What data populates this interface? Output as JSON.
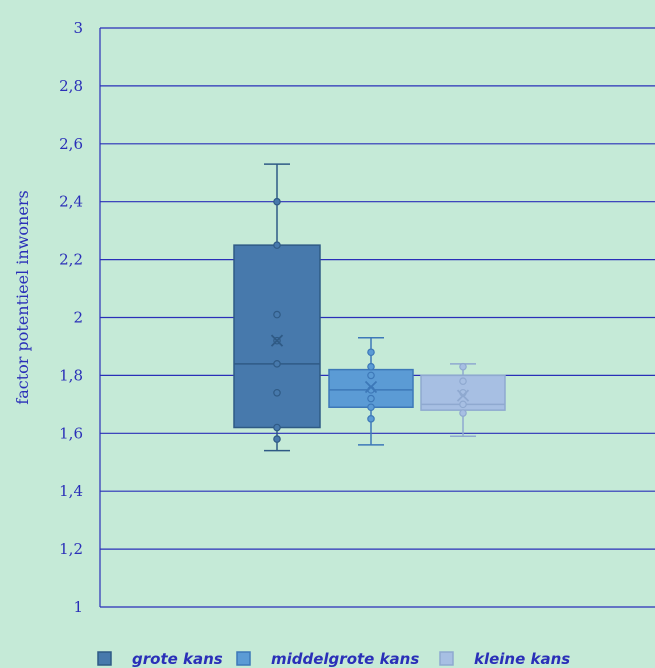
{
  "chart_data": {
    "type": "box",
    "ylabel": "factor potentieel inwoners",
    "xlabel": "",
    "ylim": [
      1,
      3
    ],
    "yticks": [
      "1",
      "1,2",
      "1,4",
      "1,6",
      "1,8",
      "2",
      "2,2",
      "2,4",
      "2,6",
      "2,8",
      "3"
    ],
    "grid": true,
    "legend_position": "bottom",
    "series": [
      {
        "name": "grote kans",
        "color": "#4779ac",
        "min": 1.54,
        "q1": 1.62,
        "median": 1.84,
        "q3": 2.25,
        "max": 2.53,
        "mean": 1.92,
        "points": [
          1.58,
          1.62,
          1.74,
          1.84,
          1.92,
          2.01,
          2.25,
          2.4
        ]
      },
      {
        "name": "middelgrote kans",
        "color": "#5b9bd5",
        "min": 1.56,
        "q1": 1.69,
        "median": 1.75,
        "q3": 1.82,
        "max": 1.93,
        "mean": 1.76,
        "points": [
          1.65,
          1.69,
          1.72,
          1.75,
          1.8,
          1.83,
          1.88
        ]
      },
      {
        "name": "kleine kans",
        "color": "#a7bfe3",
        "min": 1.59,
        "q1": 1.68,
        "median": 1.7,
        "q3": 1.8,
        "max": 1.84,
        "mean": 1.73,
        "points": [
          1.67,
          1.7,
          1.74,
          1.78,
          1.83
        ]
      }
    ]
  }
}
